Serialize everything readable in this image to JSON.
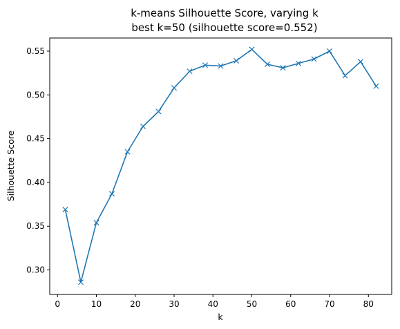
{
  "chart_data": {
    "type": "line",
    "title": "k-means Silhouette Score, varying k",
    "subtitle": "best k=50 (silhouette score=0.552)",
    "xlabel": "k",
    "ylabel": "Silhouette Score",
    "xlim": [
      -2,
      86
    ],
    "ylim": [
      0.272,
      0.565
    ],
    "xticks": [
      0,
      10,
      20,
      30,
      40,
      50,
      60,
      70,
      80
    ],
    "yticks": [
      0.3,
      0.35,
      0.4,
      0.45,
      0.5,
      0.55
    ],
    "ytick_labels": [
      "0.30",
      "0.35",
      "0.40",
      "0.45",
      "0.50",
      "0.55"
    ],
    "grid": false,
    "marker": "x",
    "color": "#1f77b4",
    "series": [
      {
        "x": [
          2,
          6,
          10,
          14,
          18,
          22,
          26,
          30,
          34,
          38,
          42,
          46,
          50,
          54,
          58,
          62,
          66,
          70,
          74,
          78,
          82
        ],
        "values": [
          0.369,
          0.286,
          0.354,
          0.387,
          0.435,
          0.464,
          0.481,
          0.508,
          0.527,
          0.534,
          0.533,
          0.539,
          0.552,
          0.535,
          0.531,
          0.536,
          0.541,
          0.55,
          0.522,
          0.538,
          0.51
        ]
      }
    ]
  }
}
